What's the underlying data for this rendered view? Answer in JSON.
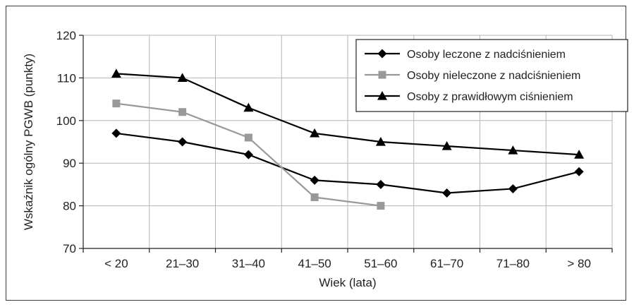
{
  "chart_data": {
    "type": "line",
    "xlabel": "Wiek (lata)",
    "ylabel": "Wskaźnik ogólny PGWB (punkty)",
    "ylim": [
      70,
      120
    ],
    "yticks": [
      70,
      80,
      90,
      100,
      110,
      120
    ],
    "categories": [
      "< 20",
      "21–30",
      "31–40",
      "41–50",
      "51–60",
      "61–70",
      "71–80",
      "> 80"
    ],
    "grid": true,
    "legend_position": "top-right",
    "series": [
      {
        "name": "Osoby leczone z nadciśnieniem",
        "values": [
          97,
          95,
          92,
          86,
          85,
          83,
          84,
          88
        ],
        "color": "#000000",
        "marker": "diamond"
      },
      {
        "name": "Osoby nieleczone z nadciśnieniem",
        "values": [
          104,
          102,
          96,
          82,
          80,
          null,
          null,
          null
        ],
        "color": "#999999",
        "marker": "square"
      },
      {
        "name": "Osoby z prawidłowym ciśnieniem",
        "values": [
          111,
          110,
          103,
          97,
          95,
          94,
          93,
          92
        ],
        "color": "#000000",
        "marker": "triangle"
      }
    ]
  }
}
